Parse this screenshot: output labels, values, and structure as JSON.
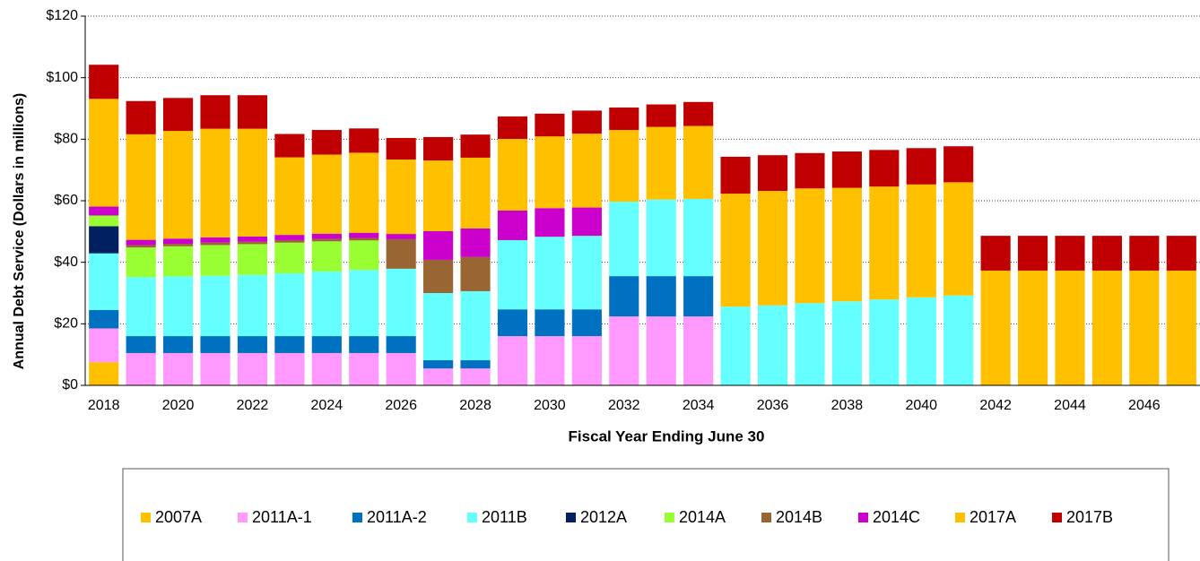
{
  "chart_data": {
    "type": "stacked_bar",
    "xlabel": "Fiscal Year Ending June 30",
    "ylabel": "Annual Debt Service (Dollars in millions)",
    "categories": [
      "2018",
      null,
      "2020",
      null,
      "2022",
      null,
      "2024",
      null,
      "2026",
      null,
      "2028",
      null,
      "2030",
      null,
      "2032",
      null,
      "2034",
      null,
      "2036",
      null,
      "2038",
      null,
      "2040",
      null,
      "2042",
      null,
      "2044",
      null,
      "2046",
      null
    ],
    "ylim": [
      0,
      120
    ],
    "yticks": [
      {
        "value": 0,
        "label": "$0"
      },
      {
        "value": 20,
        "label": "$20"
      },
      {
        "value": 40,
        "label": "$40"
      },
      {
        "value": 60,
        "label": "$60"
      },
      {
        "value": 80,
        "label": "$80"
      },
      {
        "value": 100,
        "label": "$100"
      },
      {
        "value": 120,
        "label": "$120"
      }
    ],
    "grid": true,
    "legend": "bottom",
    "series": [
      {
        "name": "2007A",
        "color": "#ffc000",
        "values": [
          7.5,
          0,
          0,
          0,
          0,
          0,
          0,
          0,
          0,
          0,
          0,
          0,
          0,
          0,
          0,
          0,
          0,
          0,
          0,
          0,
          0,
          0,
          0,
          0,
          0,
          0,
          0,
          0,
          0,
          0
        ]
      },
      {
        "name": "2011A-1",
        "color": "#ff99ff",
        "values": [
          11,
          10.5,
          10.5,
          10.5,
          10.5,
          10.5,
          10.5,
          10.5,
          10.5,
          5.5,
          5.5,
          16,
          16,
          16,
          22.4,
          22.4,
          22.4,
          0,
          0,
          0,
          0,
          0,
          0,
          0,
          0,
          0,
          0,
          0,
          0,
          0
        ]
      },
      {
        "name": "2011A-2",
        "color": "#0070c0",
        "values": [
          6,
          5.5,
          5.5,
          5.5,
          5.5,
          5.5,
          5.5,
          5.5,
          5.5,
          2.7,
          2.7,
          8.7,
          8.7,
          8.7,
          13.1,
          13.1,
          13.1,
          0,
          0,
          0,
          0,
          0,
          0,
          0,
          0,
          0,
          0,
          0,
          0,
          0
        ]
      },
      {
        "name": "2011B",
        "color": "#66ffff",
        "values": [
          18.4,
          19.2,
          19.4,
          19.6,
          19.9,
          20.4,
          21,
          21.5,
          21.9,
          21.8,
          22.4,
          22.5,
          23.6,
          23.9,
          24.2,
          24.9,
          25.1,
          25.6,
          26,
          26.7,
          27.3,
          27.9,
          28.6,
          29.2,
          0,
          0,
          0,
          0,
          0,
          0
        ]
      },
      {
        "name": "2012A",
        "color": "#002060",
        "values": [
          8.8,
          0,
          0,
          0,
          0,
          0,
          0,
          0,
          0,
          0,
          0,
          0,
          0,
          0,
          0,
          0,
          0,
          0,
          0,
          0,
          0,
          0,
          0,
          0,
          0,
          0,
          0,
          0,
          0,
          0
        ]
      },
      {
        "name": "2014A",
        "color": "#99ff33",
        "values": [
          3.5,
          9.6,
          9.8,
          10,
          10,
          10,
          9.8,
          9.6,
          0,
          0,
          0,
          0,
          0,
          0,
          0,
          0,
          0,
          0,
          0,
          0,
          0,
          0,
          0,
          0,
          0,
          0,
          0,
          0,
          0,
          0
        ]
      },
      {
        "name": "2014B",
        "color": "#996633",
        "values": [
          0,
          0.8,
          0.8,
          0.8,
          0.8,
          0.8,
          0.8,
          0.8,
          9.6,
          10.8,
          11.1,
          0,
          0,
          0,
          0,
          0,
          0,
          0,
          0,
          0,
          0,
          0,
          0,
          0,
          0,
          0,
          0,
          0,
          0,
          0
        ]
      },
      {
        "name": "2014C",
        "color": "#cc00cc",
        "values": [
          2.9,
          1.7,
          1.7,
          1.7,
          1.7,
          1.7,
          1.7,
          1.7,
          1.7,
          9.3,
          9.3,
          9.6,
          9.3,
          9.2,
          0,
          0,
          0,
          0,
          0,
          0,
          0,
          0,
          0,
          0,
          0,
          0,
          0,
          0,
          0,
          0
        ]
      },
      {
        "name": "2017A",
        "color": "#ffc000",
        "values": [
          35,
          34.3,
          35,
          35.3,
          35,
          25.2,
          25.7,
          26,
          24.2,
          23,
          23,
          23.3,
          23.3,
          24,
          23.3,
          23.6,
          23.7,
          36.7,
          37.2,
          37.3,
          36.9,
          36.7,
          36.7,
          36.8,
          37.3,
          37.3,
          37.3,
          37.3,
          37.3,
          37.3
        ]
      },
      {
        "name": "2017B",
        "color": "#c00000",
        "values": [
          11.1,
          10.8,
          10.7,
          10.9,
          10.9,
          7.6,
          8,
          7.9,
          7,
          7.6,
          7.5,
          7.3,
          7.4,
          7.5,
          7.3,
          7.3,
          7.8,
          12,
          11.6,
          11.5,
          11.8,
          11.9,
          11.8,
          11.7,
          11.3,
          11.3,
          11.3,
          11.3,
          11.3,
          11.3
        ]
      }
    ]
  }
}
